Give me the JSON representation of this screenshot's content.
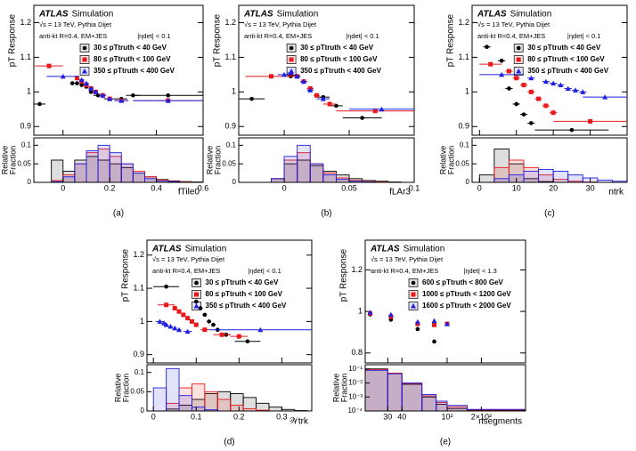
{
  "chart_data": [
    {
      "type": "response",
      "panel": "(a)",
      "atlas": "ATLAS",
      "atlas_label": "Simulation",
      "energy": "√s = 13 TeV, Pythia Dijet",
      "jets": "anti-kt R=0.4, EM+JES",
      "cut": "|ηdet| < 0.1",
      "ylabel": "pT Response",
      "xlabel": "fTile0",
      "xlim": [
        -0.125,
        0.6
      ],
      "xticks": [
        0,
        0.2,
        0.4,
        0.6
      ],
      "ylim": [
        0.875,
        1.25
      ],
      "yticks": [
        0.9,
        1,
        1.1,
        1.2
      ],
      "hist_ylabel": [
        "Relative",
        "Fraction"
      ],
      "hist_ylim": [
        0,
        0.12
      ],
      "hist_yticks": [
        0,
        0.05,
        0.1
      ],
      "hist_bins": [
        -0.1,
        -0.05,
        0,
        0.05,
        0.1,
        0.15,
        0.2,
        0.25,
        0.3,
        0.35,
        0.4,
        0.45,
        0.5,
        0.55,
        0.6
      ],
      "series": [
        {
          "name": "30 ≤ pTtruth < 40 GeV",
          "color": "#000000",
          "marker": "circle",
          "x": [
            -0.1,
            0.04,
            0.06,
            0.08,
            0.1,
            0.12,
            0.15,
            0.2,
            0.25,
            0.3,
            0.45
          ],
          "xerr": [
            0.025,
            0.01,
            0.01,
            0.01,
            0.01,
            0.01,
            0.02,
            0.025,
            0.025,
            0.03,
            0.15
          ],
          "values": [
            0.965,
            1.025,
            1.025,
            1.02,
            1.015,
            1.0,
            0.99,
            0.98,
            0.98,
            0.99,
            0.99
          ],
          "hist_values": [
            0,
            0.06,
            0.03,
            0.06,
            0.07,
            0.06,
            0.05,
            0.04,
            0.025,
            0.015,
            0.008,
            0.004,
            0.002,
            0.001
          ]
        },
        {
          "name": "80 ≤ pTtruth < 100 GeV",
          "color": "#e8191b",
          "marker": "square",
          "x": [
            -0.06,
            0.06,
            0.08,
            0.1,
            0.12,
            0.14,
            0.17,
            0.2,
            0.25,
            0.45
          ],
          "xerr": [
            0.06,
            0.01,
            0.01,
            0.01,
            0.01,
            0.01,
            0.015,
            0.015,
            0.03,
            0.15
          ],
          "values": [
            1.075,
            1.04,
            1.03,
            1.02,
            1.01,
            1.0,
            0.99,
            0.98,
            0.975,
            0.975
          ],
          "hist_values": [
            0,
            0.005,
            0.02,
            0.05,
            0.08,
            0.09,
            0.07,
            0.05,
            0.03,
            0.015,
            0.007,
            0.003,
            0.001,
            0
          ]
        },
        {
          "name": "350 ≤ pTtruth < 400 GeV",
          "color": "#1f1fe0",
          "marker": "triangle",
          "x": [
            0.0,
            0.08,
            0.1,
            0.12,
            0.14,
            0.17,
            0.2,
            0.25,
            0.45
          ],
          "xerr": [
            0.07,
            0.01,
            0.01,
            0.01,
            0.01,
            0.015,
            0.015,
            0.03,
            0.15
          ],
          "values": [
            1.045,
            1.035,
            1.025,
            1.01,
            1.0,
            0.99,
            0.98,
            0.975,
            0.975
          ],
          "hist_values": [
            0,
            0.002,
            0.015,
            0.05,
            0.085,
            0.1,
            0.08,
            0.05,
            0.025,
            0.01,
            0.004,
            0.002,
            0,
            0
          ]
        }
      ]
    },
    {
      "type": "response",
      "panel": "(b)",
      "atlas": "ATLAS",
      "atlas_label": "Simulation",
      "energy": "√s = 13 TeV, Pythia Dijet",
      "jets": "anti-kt R=0.4, EM+JES",
      "cut": "|ηdet| < 0.1",
      "ylabel": "pT Response",
      "xlabel": "fLAr3",
      "xlim": [
        -0.035,
        0.1
      ],
      "xticks": [
        0,
        0.05,
        0.1
      ],
      "ylim": [
        0.875,
        1.25
      ],
      "yticks": [
        0.9,
        1,
        1.1,
        1.2
      ],
      "hist_ylabel": [
        "Relative",
        "Fraction"
      ],
      "hist_ylim": [
        0,
        0.12
      ],
      "hist_yticks": [
        0,
        0.05,
        0.1
      ],
      "hist_bins": [
        -0.02,
        -0.01,
        0,
        0.01,
        0.02,
        0.03,
        0.04,
        0.05,
        0.06,
        0.07,
        0.08,
        0.09,
        0.1
      ],
      "series": [
        {
          "name": "30 ≤ pTtruth < 40 GeV",
          "color": "#000000",
          "marker": "circle",
          "x": [
            -0.025,
            0.005,
            0.01,
            0.015,
            0.02,
            0.03,
            0.04,
            0.06
          ],
          "xerr": [
            0.01,
            0.0025,
            0.0025,
            0.0025,
            0.0025,
            0.005,
            0.005,
            0.015
          ],
          "values": [
            0.98,
            1.045,
            1.045,
            1.03,
            1.01,
            0.985,
            0.96,
            0.925
          ],
          "hist_values": [
            0,
            0.01,
            0.05,
            0.06,
            0.045,
            0.03,
            0.02,
            0.01,
            0.005,
            0.003,
            0.001,
            0
          ]
        },
        {
          "name": "80 ≤ pTtruth < 100 GeV",
          "color": "#e8191b",
          "marker": "square",
          "x": [
            -0.01,
            0.005,
            0.01,
            0.015,
            0.02,
            0.025,
            0.035,
            0.07
          ],
          "xerr": [
            0.02,
            0.0025,
            0.0025,
            0.0025,
            0.0025,
            0.0025,
            0.005,
            0.03
          ],
          "values": [
            1.045,
            1.05,
            1.045,
            1.03,
            1.01,
            0.99,
            0.965,
            0.945
          ],
          "hist_values": [
            0,
            0.01,
            0.06,
            0.08,
            0.05,
            0.025,
            0.012,
            0.005,
            0.002,
            0.001,
            0,
            0
          ]
        },
        {
          "name": "350 ≤ pTtruth < 400 GeV",
          "color": "#1f1fe0",
          "marker": "triangle",
          "x": [
            0.0,
            0.005,
            0.01,
            0.015,
            0.02,
            0.03,
            0.075
          ],
          "xerr": [
            0.005,
            0.0025,
            0.0025,
            0.0025,
            0.0025,
            0.005,
            0.025
          ],
          "values": [
            1.05,
            1.055,
            1.045,
            1.03,
            1.005,
            0.98,
            0.95
          ],
          "hist_values": [
            0,
            0.01,
            0.07,
            0.1,
            0.05,
            0.02,
            0.008,
            0.003,
            0.001,
            0,
            0,
            0
          ]
        }
      ]
    },
    {
      "type": "response",
      "panel": "(c)",
      "atlas": "ATLAS",
      "atlas_label": "Simulation",
      "energy": "√s = 13 TeV, Pythia Dijet",
      "jets": "anti-kt R=0.4, EM+JES",
      "cut": "|ηdet| < 0.1",
      "ylabel": "pT Response",
      "xlabel": "ntrk",
      "xlim": [
        -2,
        40
      ],
      "xticks": [
        0,
        10,
        20,
        30
      ],
      "ylim": [
        0.875,
        1.25
      ],
      "yticks": [
        0.9,
        1,
        1.1,
        1.2
      ],
      "hist_ylabel": [
        "Relative",
        "Fraction"
      ],
      "hist_ylim": [
        0,
        0.12
      ],
      "hist_yticks": [
        0,
        0.05,
        0.1
      ],
      "hist_bins": [
        0,
        4,
        8,
        12,
        16,
        20,
        24,
        28,
        32,
        36,
        40
      ],
      "series": [
        {
          "name": "30 ≤ pTtruth < 40 GeV",
          "color": "#000000",
          "marker": "circle",
          "x": [
            2,
            6,
            8,
            10,
            12,
            14,
            25
          ],
          "xerr": [
            1,
            1,
            1,
            1,
            1,
            1,
            10
          ],
          "values": [
            1.13,
            1.09,
            1.01,
            0.965,
            0.935,
            0.91,
            0.89
          ],
          "hist_values": [
            0.02,
            0.09,
            0.05,
            0.01,
            0.002,
            0,
            0,
            0,
            0,
            0
          ]
        },
        {
          "name": "80 ≤ pTtruth < 100 GeV",
          "color": "#e8191b",
          "marker": "square",
          "x": [
            3,
            8,
            10,
            12,
            14,
            16,
            18,
            20,
            30
          ],
          "xerr": [
            3,
            1,
            1,
            1,
            1,
            1,
            1,
            1,
            10
          ],
          "values": [
            1.08,
            1.06,
            1.04,
            1.02,
            1.0,
            0.98,
            0.96,
            0.94,
            0.915
          ],
          "hist_values": [
            0,
            0.04,
            0.06,
            0.04,
            0.02,
            0.008,
            0.003,
            0.001,
            0,
            0
          ]
        },
        {
          "name": "350 ≤ pTtruth < 400 GeV",
          "color": "#1f1fe0",
          "marker": "triangle",
          "x": [
            6,
            14,
            18,
            20,
            22,
            24,
            26,
            28,
            34
          ],
          "xerr": [
            6,
            1,
            1,
            1,
            1,
            1,
            1,
            1,
            6
          ],
          "values": [
            1.05,
            1.04,
            1.03,
            1.025,
            1.02,
            1.01,
            1.005,
            1.0,
            0.985
          ],
          "hist_values": [
            0,
            0.01,
            0.02,
            0.03,
            0.035,
            0.03,
            0.02,
            0.012,
            0.006,
            0.003
          ]
        }
      ]
    },
    {
      "type": "response",
      "panel": "(d)",
      "atlas": "ATLAS",
      "atlas_label": "Simulation",
      "energy": "√s = 13 TeV, Pythia Dijet",
      "jets": "anti-kt R=0.4, EM+JES",
      "cut": "|ηdet| < 0.1",
      "ylabel": "pT Response",
      "xlabel": "𝒲trk",
      "xlim": [
        -0.015,
        0.37
      ],
      "xticks": [
        0,
        0.1,
        0.2,
        0.3
      ],
      "ylim": [
        0.875,
        1.245
      ],
      "yticks": [
        0.9,
        1,
        1.1,
        1.2
      ],
      "hist_ylabel": [
        "Relative",
        "Fraction"
      ],
      "hist_ylim": [
        0,
        0.12
      ],
      "hist_yticks": [
        0,
        0.05,
        0.1
      ],
      "hist_bins": [
        0,
        0.03,
        0.06,
        0.09,
        0.12,
        0.15,
        0.18,
        0.21,
        0.24,
        0.27,
        0.3,
        0.33,
        0.36
      ],
      "series": [
        {
          "name": "30 ≤ pTtruth < 40 GeV",
          "color": "#000000",
          "marker": "circle",
          "x": [
            0.03,
            0.1,
            0.11,
            0.12,
            0.13,
            0.14,
            0.15,
            0.17,
            0.22
          ],
          "xerr": [
            0.03,
            0.005,
            0.005,
            0.005,
            0.005,
            0.005,
            0.005,
            0.01,
            0.03
          ],
          "values": [
            1.105,
            1.06,
            1.04,
            1.02,
            1.0,
            0.99,
            0.975,
            0.96,
            0.94
          ],
          "hist_values": [
            0,
            0.005,
            0.015,
            0.03,
            0.045,
            0.05,
            0.045,
            0.035,
            0.02,
            0.01,
            0.004,
            0.001
          ]
        },
        {
          "name": "80 ≤ pTtruth < 100 GeV",
          "color": "#e8191b",
          "marker": "square",
          "x": [
            0.03,
            0.05,
            0.06,
            0.07,
            0.08,
            0.09,
            0.1,
            0.12,
            0.16,
            0.2
          ],
          "xerr": [
            0.02,
            0.005,
            0.005,
            0.005,
            0.005,
            0.005,
            0.005,
            0.01,
            0.02,
            0.02
          ],
          "values": [
            1.05,
            1.04,
            1.03,
            1.02,
            1.01,
            1.0,
            0.99,
            0.975,
            0.96,
            0.955
          ],
          "hist_values": [
            0,
            0.02,
            0.06,
            0.07,
            0.05,
            0.03,
            0.015,
            0.006,
            0.002,
            0,
            0,
            0
          ]
        },
        {
          "name": "350 ≤ pTtruth < 400 GeV",
          "color": "#1f1fe0",
          "marker": "triangle",
          "x": [
            0.015,
            0.025,
            0.03,
            0.04,
            0.05,
            0.06,
            0.08,
            0.25
          ],
          "xerr": [
            0.01,
            0.005,
            0.005,
            0.005,
            0.005,
            0.005,
            0.01,
            0.12
          ],
          "values": [
            1.0,
            0.995,
            0.99,
            0.985,
            0.98,
            0.975,
            0.97,
            0.975
          ],
          "hist_values": [
            0.06,
            0.11,
            0.04,
            0.01,
            0.003,
            0,
            0,
            0,
            0,
            0,
            0,
            0
          ]
        }
      ]
    },
    {
      "type": "response",
      "panel": "(e)",
      "atlas": "ATLAS",
      "atlas_label": "Simulation",
      "energy": "√s = 13 TeV, Pythia Dijet",
      "jets": "anti-kt R=0.4, EM+JES",
      "cut": "|ηdet| < 1.3",
      "ylabel": "pT Response",
      "xlabel": "nsegments",
      "log_x": true,
      "xlim": [
        19,
        490
      ],
      "xticks": [
        30,
        40,
        {
          "value": 100,
          "label": "10²"
        },
        {
          "value": 200,
          "label": "2×10²"
        }
      ],
      "ylim": [
        0.752,
        1.343
      ],
      "yticks": [
        0.8,
        1,
        1.2
      ],
      "hist_ylabel": [
        "Relative",
        "Fraction"
      ],
      "hist_log": true,
      "hist_ylim": [
        0.0001,
        0.2
      ],
      "hist_yticks": [
        {
          "value": 0.0001,
          "label": "10⁻⁴"
        },
        {
          "value": 0.001,
          "label": "10⁻³"
        },
        {
          "value": 0.01,
          "label": "10⁻²"
        },
        {
          "value": 0.1,
          "label": "10⁻¹"
        }
      ],
      "hist_bins": [
        19,
        30,
        40,
        60,
        80,
        100,
        150,
        490
      ],
      "series": [
        {
          "name": "600 ≤ pTtruth < 800 GeV",
          "color": "#000000",
          "marker": "circle",
          "x": [
            21,
            32,
            55,
            77
          ],
          "values": [
            0.985,
            0.96,
            0.915,
            0.855
          ],
          "hist_values": [
            0.1,
            0.05,
            0.008,
            0.001,
            0.0003,
            0.00015,
            0.00011
          ]
        },
        {
          "name": "1000 ≤ pTtruth < 1200 GeV",
          "color": "#e8191b",
          "marker": "square",
          "x": [
            21,
            32,
            55,
            77,
            100
          ],
          "values": [
            0.99,
            0.975,
            0.94,
            0.935,
            0.94
          ],
          "hist_values": [
            0.09,
            0.05,
            0.009,
            0.0012,
            0.0004,
            0.0002,
            0.00012
          ]
        },
        {
          "name": "1600 ≤ pTtruth < 2000 GeV",
          "color": "#1f1fe0",
          "marker": "triangle",
          "x": [
            21,
            32,
            55,
            77,
            100
          ],
          "values": [
            0.995,
            0.985,
            0.95,
            0.955,
            0.94
          ],
          "hist_values": [
            0.08,
            0.045,
            0.01,
            0.0015,
            0.0005,
            0.00025,
            0.00013
          ]
        }
      ]
    }
  ]
}
